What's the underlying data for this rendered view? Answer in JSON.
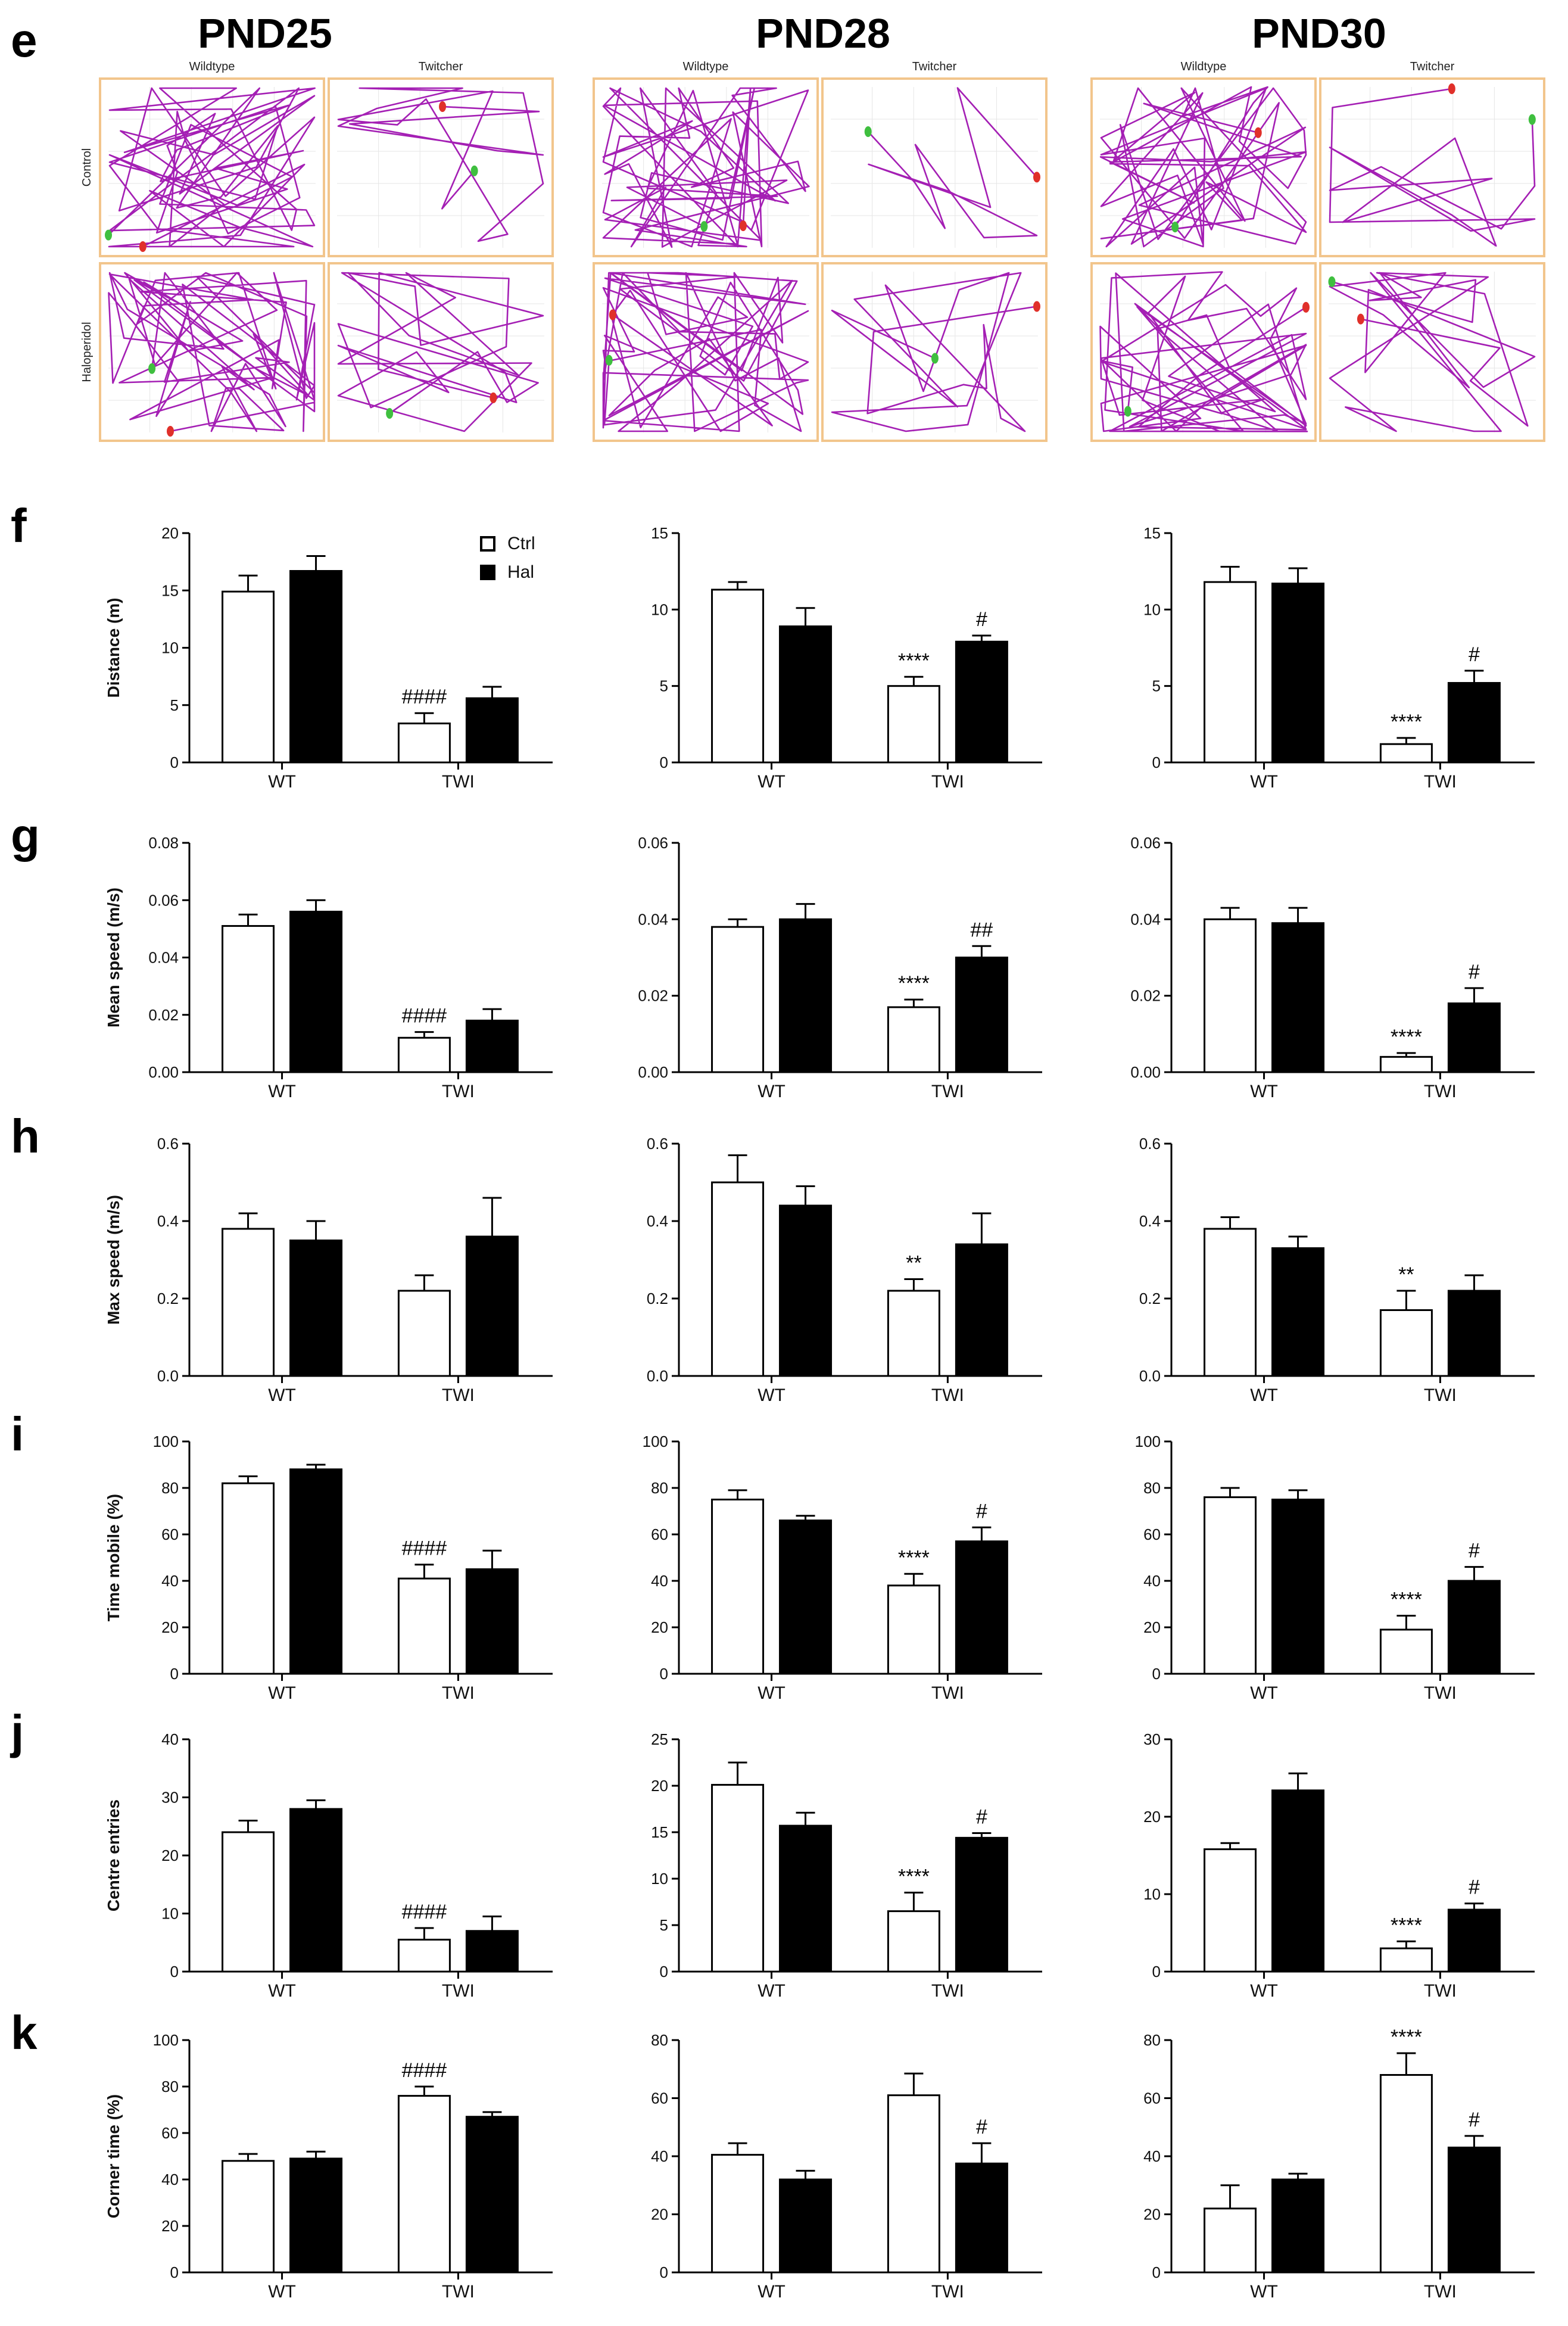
{
  "figure": {
    "columns": [
      "PND25",
      "PND28",
      "PND30"
    ],
    "track_panel": {
      "label": "e",
      "genotypes": [
        "Wildtype",
        "Twitcher"
      ],
      "treatments": [
        "Control",
        "Haloperidol"
      ]
    },
    "legend": {
      "ctrl": "Ctrl",
      "hal": "Hal"
    },
    "colors": {
      "track": "#a41fb4",
      "frame": "#f2c58c",
      "ctrl_fill": "#ffffff",
      "hal_fill": "#000000",
      "start_marker": "#3fbf3f",
      "end_marker": "#e0302a"
    }
  },
  "chart_data": [
    {
      "panel": "f",
      "type": "bar",
      "age": "PND25",
      "ylabel": "Distance (m)",
      "ylim": [
        0,
        20
      ],
      "yticks": [
        "0",
        "5",
        "10",
        "15",
        "20"
      ],
      "categories": [
        "WT",
        "TWI"
      ],
      "series": [
        {
          "name": "Ctrl",
          "values": [
            14.9,
            3.4
          ],
          "errors": [
            1.4,
            0.9
          ]
        },
        {
          "name": "Hal",
          "values": [
            16.7,
            5.6
          ],
          "errors": [
            1.3,
            1.0
          ]
        }
      ],
      "annotations": [
        {
          "group": 1,
          "series": 0,
          "text": "####"
        }
      ]
    },
    {
      "panel": "f",
      "type": "bar",
      "age": "PND28",
      "ylabel": "",
      "ylim": [
        0,
        15
      ],
      "yticks": [
        "0",
        "5",
        "10",
        "15"
      ],
      "categories": [
        "WT",
        "TWI"
      ],
      "series": [
        {
          "name": "Ctrl",
          "values": [
            11.3,
            5.0
          ],
          "errors": [
            0.5,
            0.6
          ]
        },
        {
          "name": "Hal",
          "values": [
            8.9,
            7.9
          ],
          "errors": [
            1.2,
            0.4
          ]
        }
      ],
      "annotations": [
        {
          "group": 1,
          "series": 0,
          "text": "****"
        },
        {
          "group": 1,
          "series": 1,
          "text": "#"
        }
      ]
    },
    {
      "panel": "f",
      "type": "bar",
      "age": "PND30",
      "ylabel": "",
      "ylim": [
        0,
        15
      ],
      "yticks": [
        "0",
        "5",
        "10",
        "15"
      ],
      "categories": [
        "WT",
        "TWI"
      ],
      "series": [
        {
          "name": "Ctrl",
          "values": [
            11.8,
            1.2
          ],
          "errors": [
            1.0,
            0.4
          ]
        },
        {
          "name": "Hal",
          "values": [
            11.7,
            5.2
          ],
          "errors": [
            1.0,
            0.8
          ]
        }
      ],
      "annotations": [
        {
          "group": 1,
          "series": 0,
          "text": "****"
        },
        {
          "group": 1,
          "series": 1,
          "text": "#"
        }
      ]
    },
    {
      "panel": "g",
      "type": "bar",
      "age": "PND25",
      "ylabel": "Mean speed (m/s)",
      "ylim": [
        0,
        0.08
      ],
      "yticks": [
        "0.00",
        "0.02",
        "0.04",
        "0.06",
        "0.08"
      ],
      "categories": [
        "WT",
        "TWI"
      ],
      "series": [
        {
          "name": "Ctrl",
          "values": [
            0.051,
            0.012
          ],
          "errors": [
            0.004,
            0.002
          ]
        },
        {
          "name": "Hal",
          "values": [
            0.056,
            0.018
          ],
          "errors": [
            0.004,
            0.004
          ]
        }
      ],
      "annotations": [
        {
          "group": 1,
          "series": 0,
          "text": "####"
        }
      ]
    },
    {
      "panel": "g",
      "type": "bar",
      "age": "PND28",
      "ylabel": "",
      "ylim": [
        0,
        0.06
      ],
      "yticks": [
        "0.00",
        "0.02",
        "0.04",
        "0.06"
      ],
      "categories": [
        "WT",
        "TWI"
      ],
      "series": [
        {
          "name": "Ctrl",
          "values": [
            0.038,
            0.017
          ],
          "errors": [
            0.002,
            0.002
          ]
        },
        {
          "name": "Hal",
          "values": [
            0.04,
            0.03
          ],
          "errors": [
            0.004,
            0.003
          ]
        }
      ],
      "annotations": [
        {
          "group": 1,
          "series": 0,
          "text": "****"
        },
        {
          "group": 1,
          "series": 1,
          "text": "##"
        }
      ]
    },
    {
      "panel": "g",
      "type": "bar",
      "age": "PND30",
      "ylabel": "",
      "ylim": [
        0,
        0.06
      ],
      "yticks": [
        "0.00",
        "0.02",
        "0.04",
        "0.06"
      ],
      "categories": [
        "WT",
        "TWI"
      ],
      "series": [
        {
          "name": "Ctrl",
          "values": [
            0.04,
            0.004
          ],
          "errors": [
            0.003,
            0.001
          ]
        },
        {
          "name": "Hal",
          "values": [
            0.039,
            0.018
          ],
          "errors": [
            0.004,
            0.004
          ]
        }
      ],
      "annotations": [
        {
          "group": 1,
          "series": 0,
          "text": "****"
        },
        {
          "group": 1,
          "series": 1,
          "text": "#"
        }
      ]
    },
    {
      "panel": "h",
      "type": "bar",
      "age": "PND25",
      "ylabel": "Max speed (m/s)",
      "ylim": [
        0,
        0.6
      ],
      "yticks": [
        "0.0",
        "0.2",
        "0.4",
        "0.6"
      ],
      "categories": [
        "WT",
        "TWI"
      ],
      "series": [
        {
          "name": "Ctrl",
          "values": [
            0.38,
            0.22
          ],
          "errors": [
            0.04,
            0.04
          ]
        },
        {
          "name": "Hal",
          "values": [
            0.35,
            0.36
          ],
          "errors": [
            0.05,
            0.1
          ]
        }
      ],
      "annotations": []
    },
    {
      "panel": "h",
      "type": "bar",
      "age": "PND28",
      "ylabel": "",
      "ylim": [
        0,
        0.6
      ],
      "yticks": [
        "0.0",
        "0.2",
        "0.4",
        "0.6"
      ],
      "categories": [
        "WT",
        "TWI"
      ],
      "series": [
        {
          "name": "Ctrl",
          "values": [
            0.5,
            0.22
          ],
          "errors": [
            0.07,
            0.03
          ]
        },
        {
          "name": "Hal",
          "values": [
            0.44,
            0.34
          ],
          "errors": [
            0.05,
            0.08
          ]
        }
      ],
      "annotations": [
        {
          "group": 1,
          "series": 0,
          "text": "**"
        }
      ]
    },
    {
      "panel": "h",
      "type": "bar",
      "age": "PND30",
      "ylabel": "",
      "ylim": [
        0,
        0.6
      ],
      "yticks": [
        "0.0",
        "0.2",
        "0.4",
        "0.6"
      ],
      "categories": [
        "WT",
        "TWI"
      ],
      "series": [
        {
          "name": "Ctrl",
          "values": [
            0.38,
            0.17
          ],
          "errors": [
            0.03,
            0.05
          ]
        },
        {
          "name": "Hal",
          "values": [
            0.33,
            0.22
          ],
          "errors": [
            0.03,
            0.04
          ]
        }
      ],
      "annotations": [
        {
          "group": 1,
          "series": 0,
          "text": "**"
        }
      ]
    },
    {
      "panel": "i",
      "type": "bar",
      "age": "PND25",
      "ylabel": "Time mobile (%)",
      "ylim": [
        0,
        100
      ],
      "yticks": [
        "0",
        "20",
        "40",
        "60",
        "80",
        "100"
      ],
      "categories": [
        "WT",
        "TWI"
      ],
      "series": [
        {
          "name": "Ctrl",
          "values": [
            82,
            41
          ],
          "errors": [
            3,
            6
          ]
        },
        {
          "name": "Hal",
          "values": [
            88,
            45
          ],
          "errors": [
            2,
            8
          ]
        }
      ],
      "annotations": [
        {
          "group": 1,
          "series": 0,
          "text": "####"
        }
      ]
    },
    {
      "panel": "i",
      "type": "bar",
      "age": "PND28",
      "ylabel": "",
      "ylim": [
        0,
        100
      ],
      "yticks": [
        "0",
        "20",
        "40",
        "60",
        "80",
        "100"
      ],
      "categories": [
        "WT",
        "TWI"
      ],
      "series": [
        {
          "name": "Ctrl",
          "values": [
            75,
            38
          ],
          "errors": [
            4,
            5
          ]
        },
        {
          "name": "Hal",
          "values": [
            66,
            57
          ],
          "errors": [
            2,
            6
          ]
        }
      ],
      "annotations": [
        {
          "group": 1,
          "series": 0,
          "text": "****"
        },
        {
          "group": 1,
          "series": 1,
          "text": "#"
        }
      ]
    },
    {
      "panel": "i",
      "type": "bar",
      "age": "PND30",
      "ylabel": "",
      "ylim": [
        0,
        100
      ],
      "yticks": [
        "0",
        "20",
        "40",
        "60",
        "80",
        "100"
      ],
      "categories": [
        "WT",
        "TWI"
      ],
      "series": [
        {
          "name": "Ctrl",
          "values": [
            76,
            19
          ],
          "errors": [
            4,
            6
          ]
        },
        {
          "name": "Hal",
          "values": [
            75,
            40
          ],
          "errors": [
            4,
            6
          ]
        }
      ],
      "annotations": [
        {
          "group": 1,
          "series": 0,
          "text": "****"
        },
        {
          "group": 1,
          "series": 1,
          "text": "#"
        }
      ]
    },
    {
      "panel": "j",
      "type": "bar",
      "age": "PND25",
      "ylabel": "Centre entries",
      "ylim": [
        0,
        40
      ],
      "yticks": [
        "0",
        "10",
        "20",
        "30",
        "40"
      ],
      "categories": [
        "WT",
        "TWI"
      ],
      "series": [
        {
          "name": "Ctrl",
          "values": [
            24,
            5.5
          ],
          "errors": [
            2,
            2
          ]
        },
        {
          "name": "Hal",
          "values": [
            28,
            7
          ],
          "errors": [
            1.5,
            2.5
          ]
        }
      ],
      "annotations": [
        {
          "group": 1,
          "series": 0,
          "text": "####"
        }
      ]
    },
    {
      "panel": "j",
      "type": "bar",
      "age": "PND28",
      "ylabel": "",
      "ylim": [
        0,
        25
      ],
      "yticks": [
        "0",
        "5",
        "10",
        "15",
        "20",
        "25"
      ],
      "categories": [
        "WT",
        "TWI"
      ],
      "series": [
        {
          "name": "Ctrl",
          "values": [
            20.1,
            6.5
          ],
          "errors": [
            2.4,
            2.0
          ]
        },
        {
          "name": "Hal",
          "values": [
            15.7,
            14.4
          ],
          "errors": [
            1.4,
            0.5
          ]
        }
      ],
      "annotations": [
        {
          "group": 1,
          "series": 0,
          "text": "****"
        },
        {
          "group": 1,
          "series": 1,
          "text": "#"
        }
      ]
    },
    {
      "panel": "j",
      "type": "bar",
      "age": "PND30",
      "ylabel": "",
      "ylim": [
        0,
        30
      ],
      "yticks": [
        "0",
        "10",
        "20",
        "30"
      ],
      "categories": [
        "WT",
        "TWI"
      ],
      "series": [
        {
          "name": "Ctrl",
          "values": [
            15.8,
            3.0
          ],
          "errors": [
            0.8,
            0.9
          ]
        },
        {
          "name": "Hal",
          "values": [
            23.4,
            8.0
          ],
          "errors": [
            2.2,
            0.8
          ]
        }
      ],
      "annotations": [
        {
          "group": 1,
          "series": 0,
          "text": "****"
        },
        {
          "group": 1,
          "series": 1,
          "text": "#"
        }
      ]
    },
    {
      "panel": "k",
      "type": "bar",
      "age": "PND25",
      "ylabel": "Corner time (%)",
      "ylim": [
        0,
        100
      ],
      "yticks": [
        "0",
        "20",
        "40",
        "60",
        "80",
        "100"
      ],
      "categories": [
        "WT",
        "TWI"
      ],
      "series": [
        {
          "name": "Ctrl",
          "values": [
            48,
            76
          ],
          "errors": [
            3,
            4
          ]
        },
        {
          "name": "Hal",
          "values": [
            49,
            67
          ],
          "errors": [
            3,
            2
          ]
        }
      ],
      "annotations": [
        {
          "group": 1,
          "series": 0,
          "text": "####"
        }
      ]
    },
    {
      "panel": "k",
      "type": "bar",
      "age": "PND28",
      "ylabel": "",
      "ylim": [
        0,
        80
      ],
      "yticks": [
        "0",
        "20",
        "40",
        "60",
        "80"
      ],
      "categories": [
        "WT",
        "TWI"
      ],
      "series": [
        {
          "name": "Ctrl",
          "values": [
            40.5,
            61
          ],
          "errors": [
            4,
            7.5
          ]
        },
        {
          "name": "Hal",
          "values": [
            32,
            37.5
          ],
          "errors": [
            3,
            7
          ]
        }
      ],
      "annotations": [
        {
          "group": 1,
          "series": 1,
          "text": "#"
        }
      ]
    },
    {
      "panel": "k",
      "type": "bar",
      "age": "PND30",
      "ylabel": "",
      "ylim": [
        0,
        80
      ],
      "yticks": [
        "0",
        "20",
        "40",
        "60",
        "80"
      ],
      "categories": [
        "WT",
        "TWI"
      ],
      "series": [
        {
          "name": "Ctrl",
          "values": [
            22,
            68
          ],
          "errors": [
            8,
            7.5
          ]
        },
        {
          "name": "Hal",
          "values": [
            32,
            43
          ],
          "errors": [
            2,
            4
          ]
        }
      ],
      "annotations": [
        {
          "group": 1,
          "series": 0,
          "text": "****"
        },
        {
          "group": 1,
          "series": 1,
          "text": "#"
        }
      ]
    }
  ]
}
